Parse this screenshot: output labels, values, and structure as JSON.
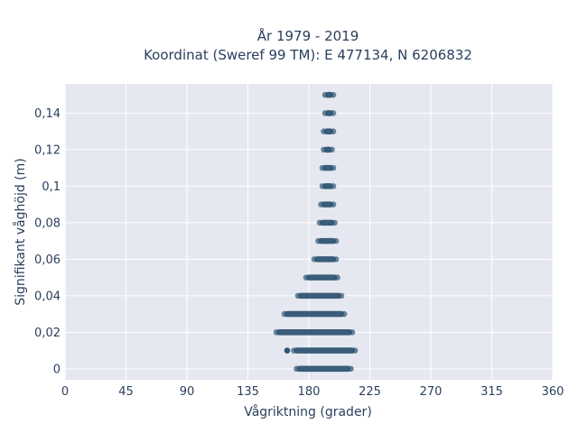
{
  "chart_data": {
    "type": "scatter",
    "title_line1": "År 1979 - 2019",
    "title_line2": "Koordinat (Sweref 99 TM): E 477134, N 6206832",
    "xlabel": "Vågriktning (grader)",
    "ylabel": "Signifikant våghöjd (m)",
    "xlim": [
      0,
      360
    ],
    "ylim": [
      -0.006,
      0.156
    ],
    "x_ticks": [
      0,
      45,
      90,
      135,
      180,
      225,
      270,
      315,
      360
    ],
    "x_tick_labels": [
      "0",
      "45",
      "90",
      "135",
      "180",
      "225",
      "270",
      "315",
      "360"
    ],
    "y_ticks": [
      0,
      0.02,
      0.04,
      0.06,
      0.08,
      0.1,
      0.12,
      0.14
    ],
    "y_tick_labels": [
      "0",
      "0,02",
      "0,04",
      "0,06",
      "0,08",
      "0,1",
      "0,12",
      "0,14"
    ],
    "grid": true,
    "marker_color": "#2f5573",
    "background_color": "#e5e8f0",
    "bands": [
      {
        "y": 0.0,
        "x_min": 171,
        "x_max": 211
      },
      {
        "y": 0.01,
        "x_min": 169,
        "x_max": 214
      },
      {
        "y": 0.02,
        "x_min": 156,
        "x_max": 212
      },
      {
        "y": 0.03,
        "x_min": 162,
        "x_max": 206
      },
      {
        "y": 0.04,
        "x_min": 172,
        "x_max": 204
      },
      {
        "y": 0.05,
        "x_min": 178,
        "x_max": 201
      },
      {
        "y": 0.06,
        "x_min": 184,
        "x_max": 200
      },
      {
        "y": 0.07,
        "x_min": 187,
        "x_max": 200
      },
      {
        "y": 0.08,
        "x_min": 188,
        "x_max": 199
      },
      {
        "y": 0.09,
        "x_min": 189,
        "x_max": 198
      },
      {
        "y": 0.1,
        "x_min": 190,
        "x_max": 198
      },
      {
        "y": 0.11,
        "x_min": 190,
        "x_max": 198
      },
      {
        "y": 0.12,
        "x_min": 191,
        "x_max": 197
      },
      {
        "y": 0.13,
        "x_min": 191,
        "x_max": 198
      },
      {
        "y": 0.14,
        "x_min": 192,
        "x_max": 198
      },
      {
        "y": 0.15,
        "x_min": 192,
        "x_max": 198
      }
    ],
    "outliers": [
      {
        "x": 164,
        "y": 0.01
      }
    ]
  }
}
